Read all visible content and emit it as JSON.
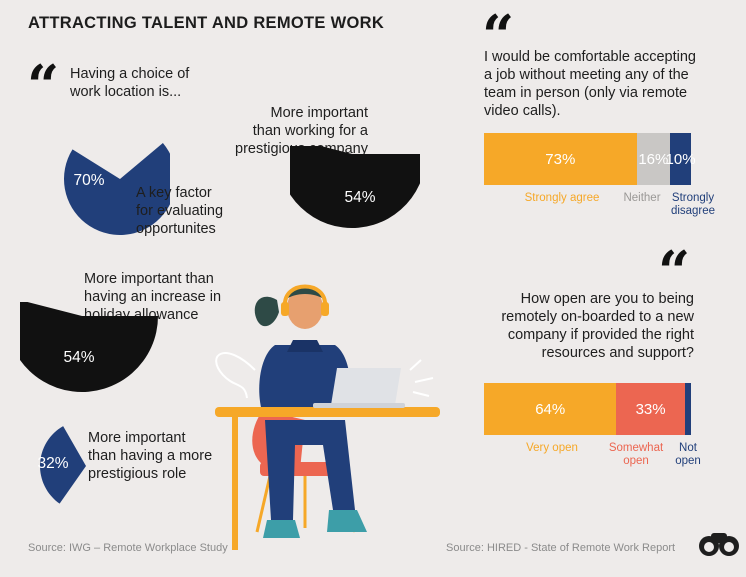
{
  "title": "ATTRACTING TALENT AND REMOTE WORK",
  "colors": {
    "blue": "#213f7a",
    "black": "#111111",
    "orange": "#f6a828",
    "red": "#ec6651",
    "grey": "#c9c7c5",
    "bg": "#eeebea"
  },
  "left": {
    "intro": [
      "Having a choice of",
      "work location is..."
    ],
    "source": "Source: IWG – Remote Workplace Study"
  },
  "right": {
    "q1": [
      "I would be comfortable accepting",
      "a job without meeting any of the",
      "team in person (only via remote",
      "video calls)."
    ],
    "q2": [
      "How open are you to being",
      "remotely on-boarded to a new",
      "company if provided the right",
      "resources and support?"
    ],
    "source": "Source: HIRED - State of Remote Work Report"
  },
  "chart_data": [
    {
      "type": "pie",
      "label_lines": [
        "A key factor",
        "for evaluating",
        "opportunites"
      ],
      "value": 70,
      "value_label": "70%",
      "color": "#213f7a"
    },
    {
      "type": "pie",
      "label_lines": [
        "More important",
        "than working for a",
        "prestigious company"
      ],
      "value": 54,
      "value_label": "54%",
      "color": "#111111"
    },
    {
      "type": "pie",
      "label_lines": [
        "More important than",
        "having an increase in",
        "holiday allowance"
      ],
      "value": 54,
      "value_label": "54%",
      "color": "#111111"
    },
    {
      "type": "pie",
      "label_lines": [
        "More important",
        "than having a more",
        "prestigious role"
      ],
      "value": 32,
      "value_label": "32%",
      "color": "#213f7a"
    },
    {
      "type": "bar",
      "series": [
        {
          "name": "Strongly agree",
          "value": 73,
          "value_label": "73%",
          "color": "#f6a828"
        },
        {
          "name": "Neither",
          "value": 16,
          "value_label": "16%",
          "color": "#c9c7c5"
        },
        {
          "name": "Strongly disagree",
          "value": 10,
          "value_label": "10%",
          "color": "#213f7a"
        }
      ]
    },
    {
      "type": "bar",
      "series": [
        {
          "name": "Very open",
          "value": 64,
          "value_label": "64%",
          "color": "#f6a828"
        },
        {
          "name": "Somewhat open",
          "value": 33,
          "value_label": "33%",
          "color": "#ec6651"
        },
        {
          "name": "Not open",
          "value": 3,
          "value_label": "",
          "color": "#213f7a"
        }
      ]
    }
  ]
}
